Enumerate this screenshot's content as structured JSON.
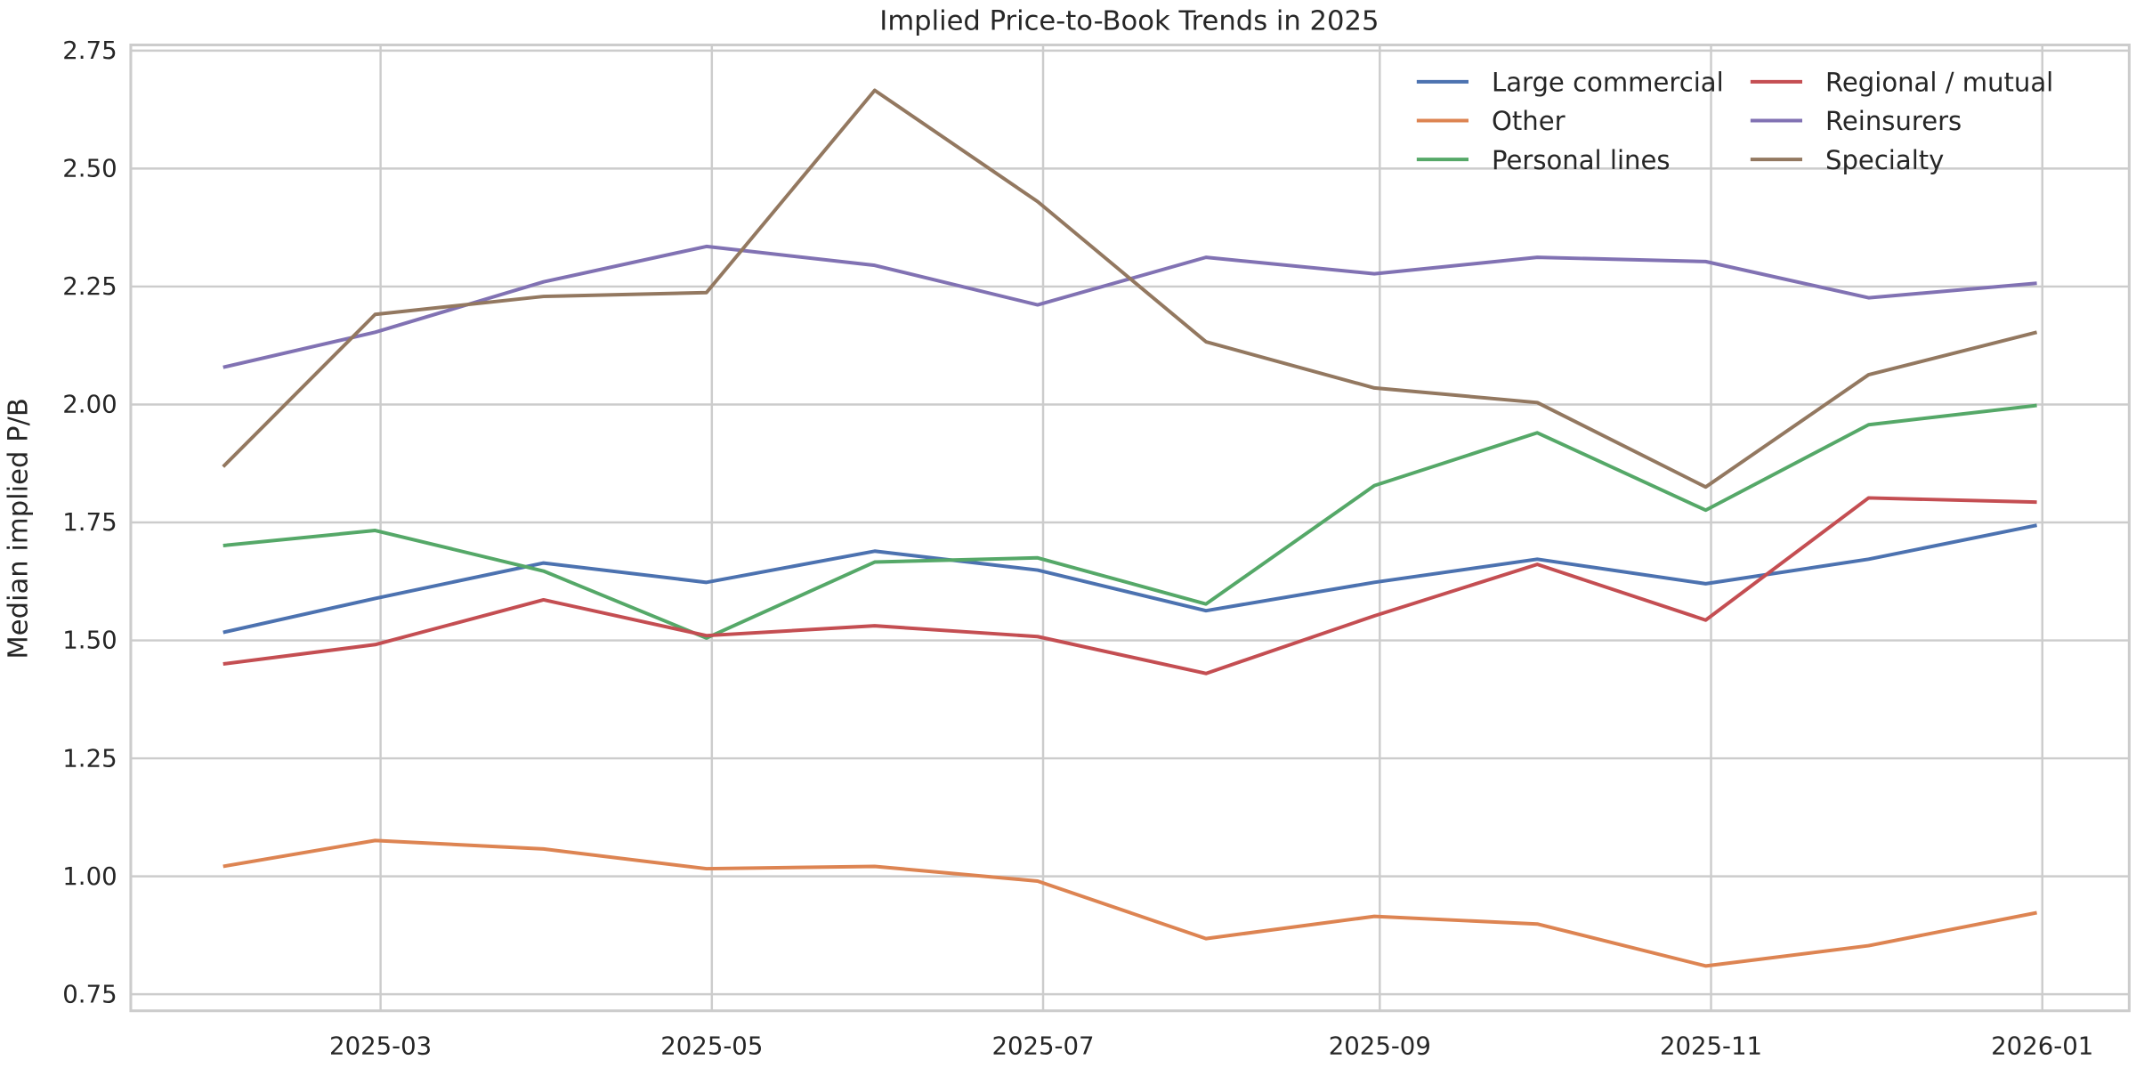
{
  "chart_data": {
    "type": "line",
    "title": "Implied Price-to-Book Trends in 2025",
    "xlabel": "",
    "ylabel": "Median implied P/B",
    "ylim": [
      0.715,
      2.762
    ],
    "xlim": [
      "2025-01-14",
      "2026-01-17"
    ],
    "grid": true,
    "legend_placement": "top-right",
    "legend_columns": 2,
    "x_ticks": [
      "2025-03",
      "2025-05",
      "2025-07",
      "2025-09",
      "2025-11",
      "2026-01"
    ],
    "x_tick_dates": [
      "2025-03-01",
      "2025-05-01",
      "2025-07-01",
      "2025-09-01",
      "2025-11-01",
      "2026-01-01"
    ],
    "y_ticks": [
      "0.75",
      "1.00",
      "1.25",
      "1.50",
      "1.75",
      "2.00",
      "2.25",
      "2.50",
      "2.75"
    ],
    "x": [
      "2025-01-31",
      "2025-02-28",
      "2025-03-31",
      "2025-04-30",
      "2025-05-31",
      "2025-06-30",
      "2025-07-31",
      "2025-08-31",
      "2025-09-30",
      "2025-10-31",
      "2025-11-30",
      "2025-12-31"
    ],
    "series": [
      {
        "name": "Large commercial",
        "color": "#4c72b0",
        "values": [
          1.517,
          1.589,
          1.664,
          1.623,
          1.689,
          1.649,
          1.563,
          1.623,
          1.672,
          1.62,
          1.672,
          1.744
        ]
      },
      {
        "name": "Other",
        "color": "#dd8452",
        "values": [
          1.021,
          1.076,
          1.058,
          1.016,
          1.021,
          0.99,
          0.868,
          0.915,
          0.899,
          0.81,
          0.853,
          0.923
        ]
      },
      {
        "name": "Personal lines",
        "color": "#55a868",
        "values": [
          1.701,
          1.733,
          1.647,
          1.505,
          1.666,
          1.675,
          1.577,
          1.828,
          1.94,
          1.776,
          1.957,
          1.998
        ]
      },
      {
        "name": "Regional / mutual",
        "color": "#c44e52",
        "values": [
          1.45,
          1.491,
          1.586,
          1.51,
          1.531,
          1.508,
          1.43,
          1.552,
          1.661,
          1.543,
          1.802,
          1.793
        ]
      },
      {
        "name": "Reinsurers",
        "color": "#8172b3",
        "values": [
          2.079,
          2.153,
          2.26,
          2.335,
          2.295,
          2.211,
          2.312,
          2.277,
          2.312,
          2.303,
          2.226,
          2.257
        ]
      },
      {
        "name": "Specialty",
        "color": "#937860",
        "values": [
          1.868,
          2.191,
          2.229,
          2.237,
          2.666,
          2.43,
          2.133,
          2.035,
          2.004,
          1.825,
          2.063,
          2.153
        ]
      }
    ]
  }
}
